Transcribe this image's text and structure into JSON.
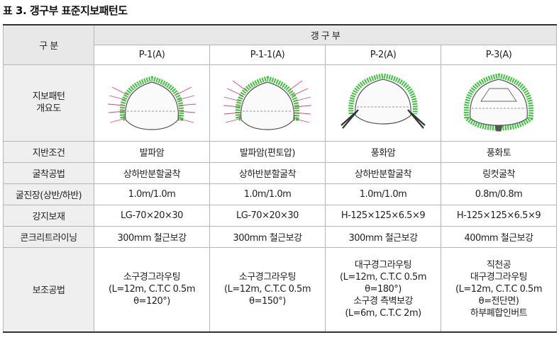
{
  "caption": "표 3. 갱구부 표준지보패턴도",
  "header": {
    "category": "구 분",
    "group": "갱 구 부",
    "patterns": [
      "P-1(A)",
      "P-1-1(A)",
      "P-2(A)",
      "P-3(A)"
    ]
  },
  "rows": [
    {
      "label": "지반조건",
      "cells": [
        "발파암",
        "발파암(편토압)",
        "풍화암",
        "풍화토"
      ]
    },
    {
      "label": "굴착공법",
      "cells": [
        "상하반분할굴착",
        "상하반분할굴착",
        "상하반분할굴착",
        "링컷굴착"
      ]
    },
    {
      "label": "굴진장(상반/하반)",
      "cells": [
        "1.0m/1.0m",
        "1.0m/1.0m",
        "1.0m/1.0m",
        "0.8m/0.8m"
      ]
    },
    {
      "label": "강지보재",
      "cells": [
        "LG-70×20×30",
        "LG-70×20×30",
        "H-125×125×6.5×9",
        "H-125×125×6.5×9"
      ]
    },
    {
      "label": "콘크리트라이닝",
      "cells": [
        "300mm 철근보강",
        "300mm 철근보강",
        "300mm 철근보강",
        "400mm 철근보강"
      ]
    }
  ],
  "figure_row": {
    "label_line1": "지보패턴",
    "label_line2": "개요도"
  },
  "support_row": {
    "label": "보조공법",
    "cells": [
      [
        "소구경그라우팅",
        "(L=12m, C.T.C 0.5m",
        "θ=120°)"
      ],
      [
        "소구경그라우팅",
        "(L=12m, C.T.C 0.5m",
        "θ=150°)"
      ],
      [
        "대구경그라우팅",
        "(L=12m, C.T.C 0.5m",
        "θ=180°)",
        "소구경 측벽보강",
        "(L=6m, C.T.C 2m)"
      ],
      [
        "직천공",
        "대구경그라우팅",
        "(L=12m, C.T.C 0.5m",
        "θ=전단면)",
        "하부폐합인버트"
      ]
    ]
  },
  "colors": {
    "grout": "#3cc43c",
    "bolt": "#e0407a",
    "outline": "#555555",
    "header_bg": "#e8e8e8"
  }
}
